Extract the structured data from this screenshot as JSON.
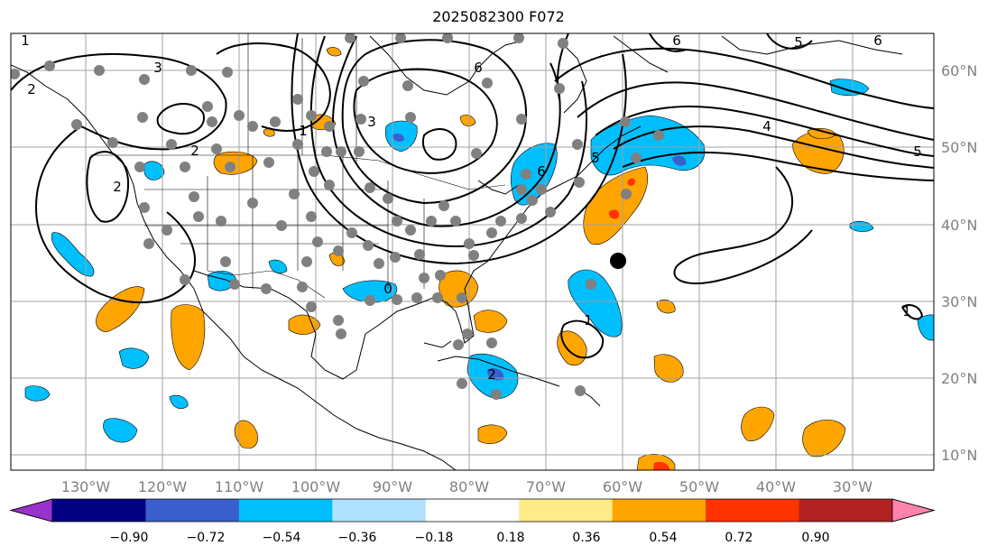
{
  "title": "2025082300 F072",
  "lon_labels": [
    "130°W",
    "120°W",
    "110°W",
    "100°W",
    "90°W",
    "80°W",
    "70°W",
    "60°W",
    "50°W",
    "40°W",
    "30°W"
  ],
  "lat_labels": [
    "60°N",
    "50°N",
    "40°N",
    "30°N",
    "20°N",
    "10°N"
  ],
  "colorbar": {
    "ticks": [
      "−0.90",
      "−0.72",
      "−0.54",
      "−0.36",
      "−0.18",
      "0.18",
      "0.36",
      "0.54",
      "0.72",
      "0.90"
    ],
    "colors": [
      "#9932cc",
      "#000080",
      "#3a5fcd",
      "#00bfff",
      "#b0e2ff",
      "#ffffff",
      "#ffeb8a",
      "#ffa500",
      "#ff3300",
      "#b22222",
      "#ff83ac"
    ]
  },
  "contour_labels": [
    "3",
    "2",
    "2",
    "1",
    "1",
    "2",
    "3",
    "6",
    "6",
    "6",
    "5",
    "6",
    "5",
    "4",
    "5",
    "1",
    "2",
    "1",
    "0"
  ],
  "storm_marker": "storm-center",
  "colors": {
    "cold": "#00bfff",
    "warm": "#ffa500",
    "hot": "#ff3300",
    "deep": "#3a5fcd"
  }
}
